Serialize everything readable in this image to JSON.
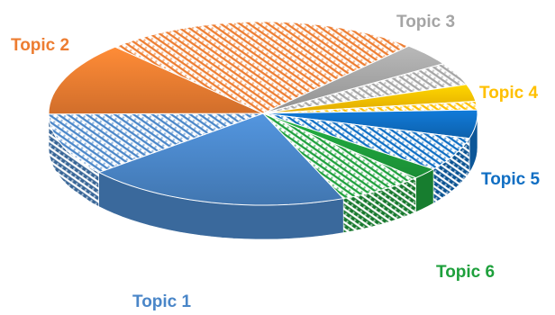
{
  "chart_data": {
    "type": "pie",
    "style": "3d-exploded-pie-with-patterned-subslices",
    "series": [
      {
        "name": "Topic 1",
        "color": "#4A86C8",
        "values": [
          20,
          11
        ]
      },
      {
        "name": "Topic 2",
        "color": "#ED7D31",
        "values": [
          13,
          24
        ]
      },
      {
        "name": "Topic 3",
        "color": "#A5A5A5",
        "values": [
          4,
          4
        ]
      },
      {
        "name": "Topic 4",
        "color": "#FFC000",
        "values": [
          3,
          1.5
        ]
      },
      {
        "name": "Topic 5",
        "color": "#0F6EC3",
        "values": [
          5,
          6
        ]
      },
      {
        "name": "Topic 6",
        "color": "#1EA03C",
        "values": [
          2,
          6.5
        ]
      }
    ],
    "slice_order_note": "each topic has a solid sub-slice and a hatched sub-slice",
    "labels": {
      "topic1": "Topic 1",
      "topic2": "Topic 2",
      "topic3": "Topic 3",
      "topic4": "Topic 4",
      "topic5": "Topic 5",
      "topic6": "Topic 6"
    }
  }
}
